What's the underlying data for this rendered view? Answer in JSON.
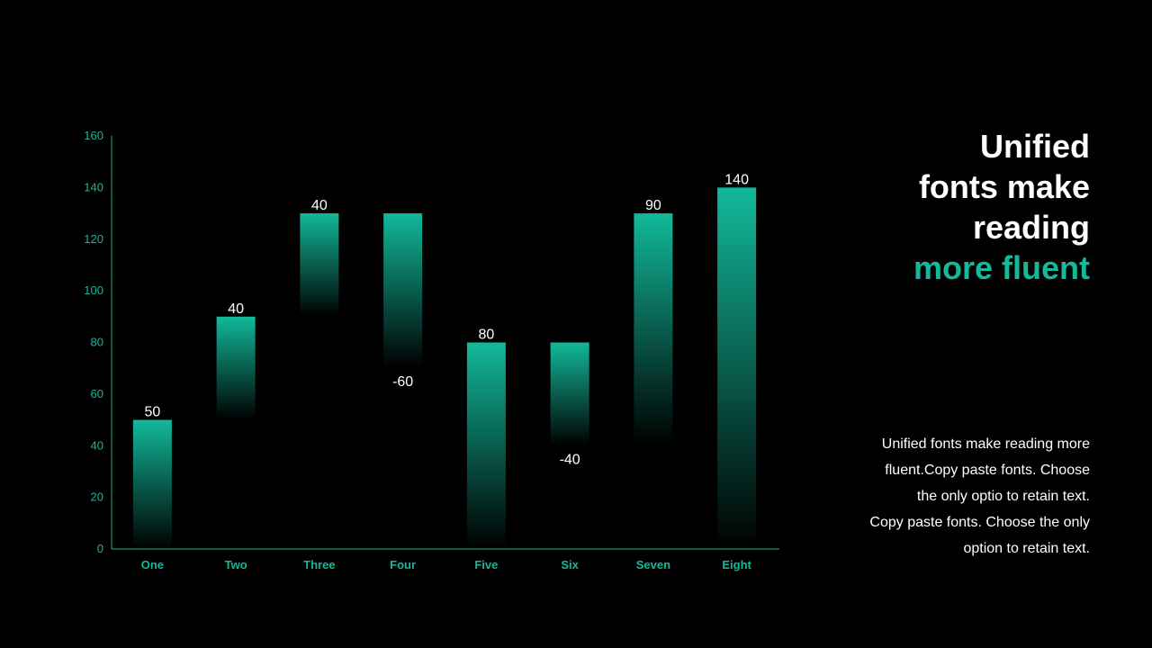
{
  "chart_data": {
    "type": "bar",
    "subtype": "waterfall",
    "categories": [
      "One",
      "Two",
      "Three",
      "Four",
      "Five",
      "Six",
      "Seven",
      "Eight"
    ],
    "bars": [
      {
        "category": "One",
        "from": 0,
        "to": 50,
        "label": "50",
        "label_pos": "top"
      },
      {
        "category": "Two",
        "from": 50,
        "to": 90,
        "label": "40",
        "label_pos": "top"
      },
      {
        "category": "Three",
        "from": 90,
        "to": 130,
        "label": "40",
        "label_pos": "top"
      },
      {
        "category": "Four",
        "from": 130,
        "to": 70,
        "label": "-60",
        "label_pos": "bottom"
      },
      {
        "category": "Five",
        "from": 0,
        "to": 80,
        "label": "80",
        "label_pos": "top"
      },
      {
        "category": "Six",
        "from": 80,
        "to": 40,
        "label": "-40",
        "label_pos": "bottom"
      },
      {
        "category": "Seven",
        "from": 40,
        "to": 130,
        "label": "90",
        "label_pos": "top"
      },
      {
        "category": "Eight",
        "from": 0,
        "to": 140,
        "label": "140",
        "label_pos": "top"
      }
    ],
    "yticks": [
      "0",
      "20",
      "40",
      "60",
      "80",
      "100",
      "120",
      "140",
      "160"
    ],
    "ylim": [
      0,
      160
    ],
    "grid": false,
    "colors": {
      "bar": "#12b99a",
      "axis": "#12b99a",
      "tick_label": "#12b99a",
      "data_label": "#ffffff"
    }
  },
  "heading": {
    "line1": "Unified",
    "line2": "fonts make",
    "line3": "reading",
    "line4": "more fluent"
  },
  "body": {
    "line1": "Unified fonts make reading more",
    "line2": "fluent.Copy paste fonts. Choose",
    "line3": "the only optio to retain text.",
    "line4": "Copy paste  fonts. Choose the only",
    "line5": "option to retain text."
  },
  "colors": {
    "background": "#000000",
    "accent": "#12b99a",
    "text": "#ffffff"
  }
}
